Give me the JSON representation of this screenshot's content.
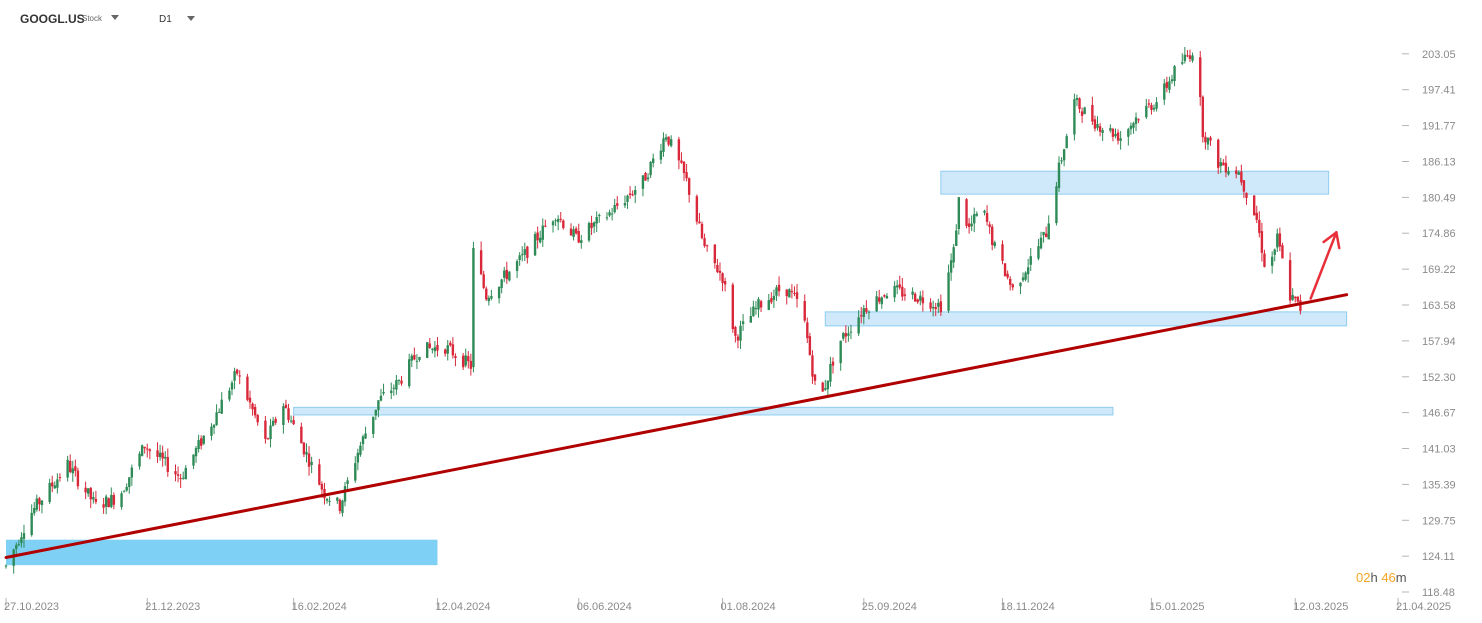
{
  "toolbar": {
    "symbol": "GOOGL.US",
    "type_label": "Stock",
    "interval": "D1"
  },
  "countdown": {
    "hours": "02",
    "h_unit": "h",
    "minutes": "46",
    "m_unit": "m"
  },
  "colors": {
    "up": "#2e8b57",
    "down": "#d9283a",
    "zone_fill": "#cfe9fb",
    "zone_stroke": "#8fcdf0",
    "zone_fill_strong": "#7fd0f5",
    "trendline": "#b00000",
    "arrow": "#e8303a"
  },
  "chart_data": {
    "type": "candlestick",
    "title": "",
    "xlabel": "",
    "ylabel": "",
    "ylim": [
      118.48,
      208.68
    ],
    "y_ticks": [
      "203.05",
      "197.41",
      "191.77",
      "186.13",
      "180.49",
      "174.86",
      "169.22",
      "163.58",
      "157.94",
      "152.30",
      "146.67",
      "141.03",
      "135.39",
      "129.75",
      "124.11",
      "118.48"
    ],
    "x_ticks": [
      "27.10.2023",
      "21.12.2023",
      "16.02.2024",
      "12.04.2024",
      "06.06.2024",
      "01.08.2024",
      "25.09.2024",
      "18.11.2024",
      "15.01.2025",
      "12.03.2025",
      "21.04.2025"
    ],
    "x_range": [
      "2023-10-27",
      "2025-04-21"
    ],
    "price_path": [
      [
        "2023-10-27",
        122.5
      ],
      [
        "2023-11-05",
        130.5
      ],
      [
        "2023-11-20",
        138.5
      ],
      [
        "2023-12-01",
        132.0
      ],
      [
        "2023-12-10",
        133.5
      ],
      [
        "2023-12-20",
        141.5
      ],
      [
        "2024-01-03",
        136.5
      ],
      [
        "2024-01-15",
        145.0
      ],
      [
        "2024-01-25",
        153.0
      ],
      [
        "2024-02-05",
        142.0
      ],
      [
        "2024-02-12",
        148.0
      ],
      [
        "2024-02-20",
        141.0
      ],
      [
        "2024-02-28",
        134.0
      ],
      [
        "2024-03-05",
        132.0
      ],
      [
        "2024-03-12",
        140.5
      ],
      [
        "2024-03-20",
        148.5
      ],
      [
        "2024-03-28",
        151.5
      ],
      [
        "2024-04-05",
        156.5
      ],
      [
        "2024-04-15",
        157.0
      ],
      [
        "2024-04-25",
        154.0
      ],
      [
        "2024-04-26",
        172.0
      ],
      [
        "2024-05-01",
        165.0
      ],
      [
        "2024-05-15",
        171.0
      ],
      [
        "2024-05-28",
        178.0
      ],
      [
        "2024-06-05",
        174.0
      ],
      [
        "2024-06-18",
        178.0
      ],
      [
        "2024-07-01",
        183.0
      ],
      [
        "2024-07-10",
        190.5
      ],
      [
        "2024-07-18",
        183.0
      ],
      [
        "2024-07-25",
        172.5
      ],
      [
        "2024-08-01",
        168.0
      ],
      [
        "2024-08-06",
        158.5
      ],
      [
        "2024-08-15",
        163.5
      ],
      [
        "2024-08-25",
        166.5
      ],
      [
        "2024-09-01",
        163.0
      ],
      [
        "2024-09-06",
        151.0
      ],
      [
        "2024-09-08",
        148.5
      ],
      [
        "2024-09-15",
        157.5
      ],
      [
        "2024-09-25",
        163.0
      ],
      [
        "2024-10-05",
        166.0
      ],
      [
        "2024-10-15",
        165.0
      ],
      [
        "2024-10-25",
        163.5
      ],
      [
        "2024-10-30",
        172.0
      ],
      [
        "2024-11-01",
        180.0
      ],
      [
        "2024-11-05",
        175.5
      ],
      [
        "2024-11-10",
        179.0
      ],
      [
        "2024-11-15",
        172.5
      ],
      [
        "2024-11-22",
        166.0
      ],
      [
        "2024-11-28",
        170.0
      ],
      [
        "2024-12-05",
        175.0
      ],
      [
        "2024-12-10",
        185.0
      ],
      [
        "2024-12-16",
        195.5
      ],
      [
        "2024-12-25",
        192.0
      ],
      [
        "2025-01-03",
        190.0
      ],
      [
        "2025-01-10",
        193.5
      ],
      [
        "2025-01-18",
        196.0
      ],
      [
        "2025-01-25",
        201.0
      ],
      [
        "2025-02-01",
        204.0
      ],
      [
        "2025-02-04",
        191.0
      ],
      [
        "2025-02-10",
        186.0
      ],
      [
        "2025-02-18",
        184.5
      ],
      [
        "2025-02-25",
        177.0
      ],
      [
        "2025-03-01",
        168.0
      ],
      [
        "2025-03-05",
        174.0
      ],
      [
        "2025-03-10",
        165.0
      ],
      [
        "2025-03-14",
        163.0
      ]
    ],
    "support_zones": [
      {
        "from": "2023-10-27",
        "to": "2024-04-12",
        "low": 122.7,
        "high": 126.7,
        "style": "strong"
      },
      {
        "from": "2024-02-16",
        "to": "2024-12-31",
        "low": 146.3,
        "high": 147.5,
        "style": "light"
      },
      {
        "from": "2024-09-10",
        "to": "2025-04-01",
        "low": 160.3,
        "high": 162.5,
        "style": "light"
      },
      {
        "from": "2024-10-25",
        "to": "2025-03-25",
        "low": 181.0,
        "high": 184.6,
        "style": "light"
      }
    ],
    "trendline": {
      "start": [
        "2023-10-27",
        123.9
      ],
      "end": [
        "2025-04-01",
        165.2
      ]
    },
    "arrow": {
      "start": [
        "2025-03-18",
        164.6
      ],
      "end": [
        "2025-03-28",
        175.0
      ]
    },
    "grid": false,
    "legend": "none"
  }
}
